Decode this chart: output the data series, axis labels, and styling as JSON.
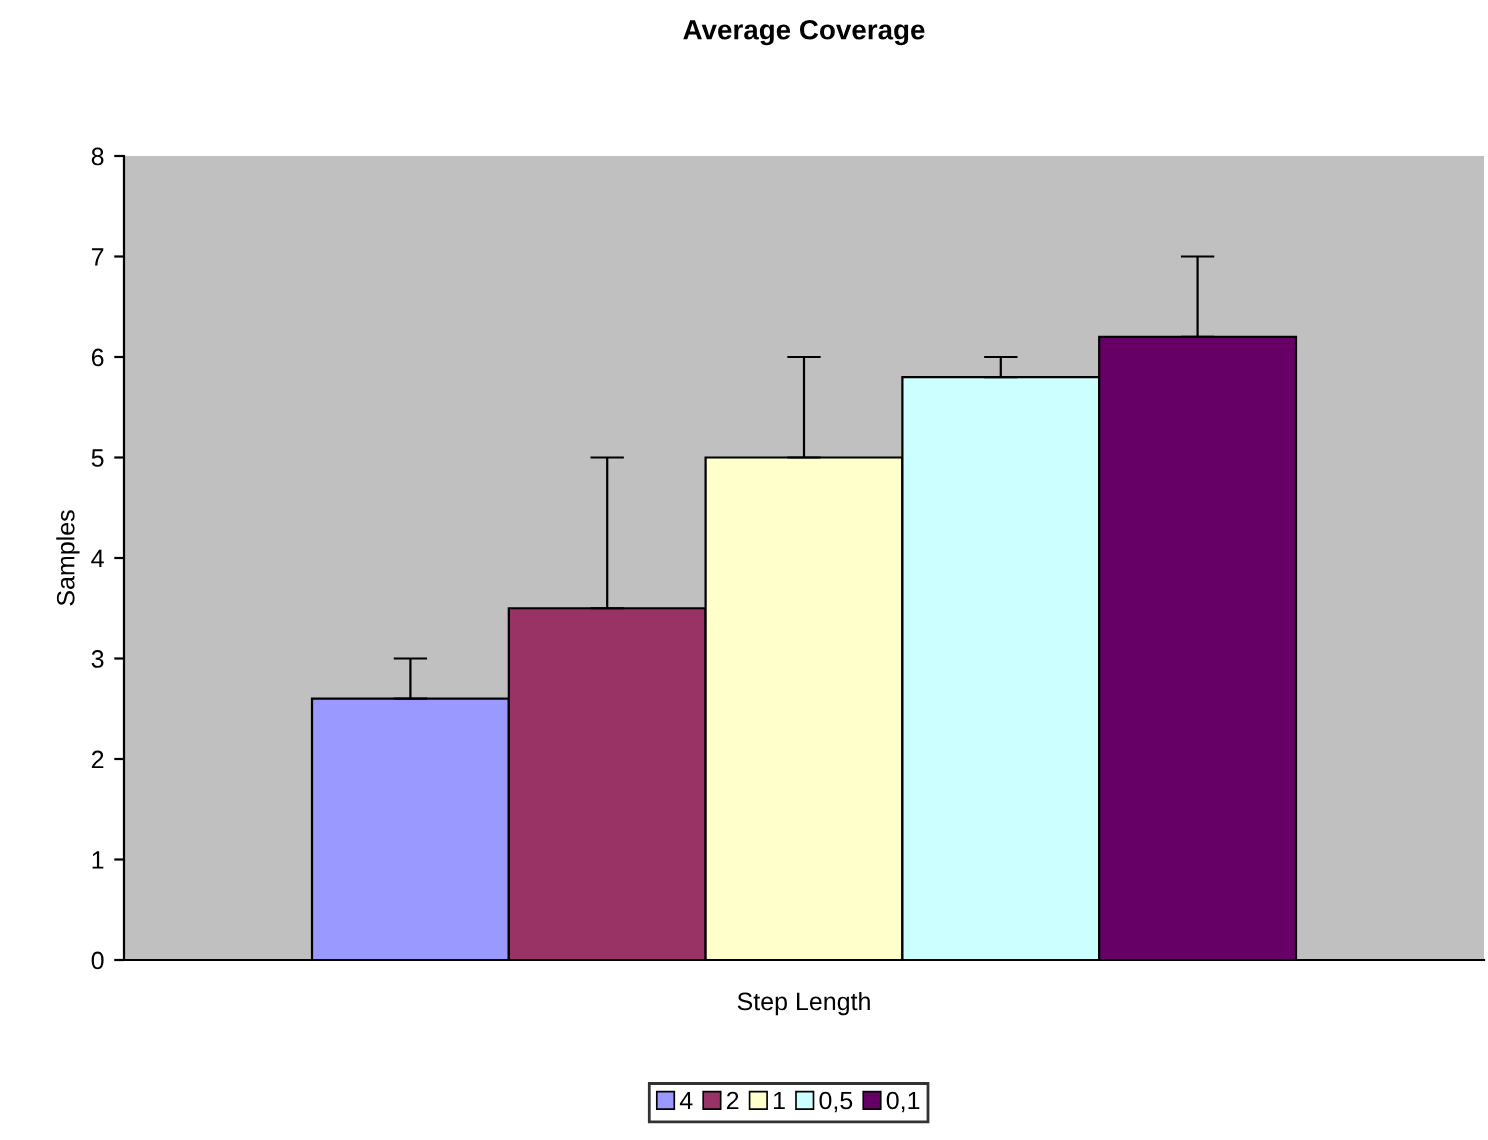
{
  "chart_data": {
    "type": "bar",
    "title": "Average Coverage",
    "xlabel": "Step Length",
    "ylabel": "Samples",
    "categories": [
      null
    ],
    "series": [
      {
        "name": "4",
        "color": "#9999ff",
        "values": [
          2.6
        ],
        "errors": [
          [
            2.6,
            3.0
          ]
        ]
      },
      {
        "name": "2",
        "color": "#993366",
        "values": [
          3.5
        ],
        "errors": [
          [
            3.5,
            5.0
          ]
        ]
      },
      {
        "name": "1",
        "color": "#ffffcc",
        "values": [
          5.0
        ],
        "errors": [
          [
            5.0,
            6.0
          ]
        ]
      },
      {
        "name": "0,5",
        "color": "#ccffff",
        "values": [
          5.8
        ],
        "errors": [
          [
            5.8,
            6.0
          ]
        ]
      },
      {
        "name": "0,1",
        "color": "#660066",
        "values": [
          6.2
        ],
        "errors": [
          [
            6.2,
            7.0
          ]
        ]
      }
    ],
    "ylim": [
      0,
      8
    ],
    "yticks": [
      0,
      1,
      2,
      3,
      4,
      5,
      6,
      7,
      8
    ],
    "grid": false,
    "legend": "bottom"
  }
}
